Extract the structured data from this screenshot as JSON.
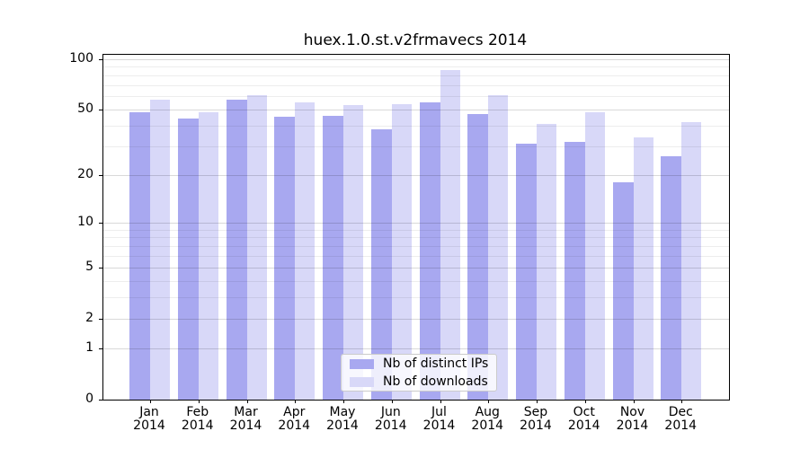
{
  "title": "huex.1.0.st.v2frmavecs 2014",
  "chart_data": {
    "type": "bar",
    "title": "huex.1.0.st.v2frmavecs 2014",
    "categories": [
      "Jan 2014",
      "Feb 2014",
      "Mar 2014",
      "Apr 2014",
      "May 2014",
      "Jun 2014",
      "Jul 2014",
      "Aug 2014",
      "Sep 2014",
      "Oct 2014",
      "Nov 2014",
      "Dec 2014"
    ],
    "series": [
      {
        "name": "Nb of distinct IPs",
        "color": "#a8a8f0",
        "values": [
          48,
          44,
          57,
          45,
          46,
          38,
          55,
          47,
          31,
          32,
          18,
          26
        ]
      },
      {
        "name": "Nb of downloads",
        "color": "#d8d8f8",
        "values": [
          57,
          48,
          61,
          55,
          53,
          54,
          86,
          61,
          41,
          48,
          34,
          42
        ]
      }
    ],
    "yscale": "log1p",
    "ylim": [
      0,
      106
    ],
    "y_major_ticks": [
      0,
      1,
      2,
      5,
      10,
      20,
      50,
      100
    ],
    "y_minor_gridlines": [
      3,
      4,
      6,
      7,
      8,
      9,
      30,
      40,
      60,
      70,
      80,
      90
    ],
    "xlabel": "",
    "ylabel": "",
    "grid": "horizontal",
    "legend_position": "lower-center"
  },
  "colors": {
    "bar_distinct_ips": "#a8a8f0",
    "bar_downloads": "#d8d8f8",
    "grid_major": "#d6d6d6",
    "grid_minor": "#ededed",
    "axis": "#000000",
    "legend_border": "#cbcbcb"
  }
}
